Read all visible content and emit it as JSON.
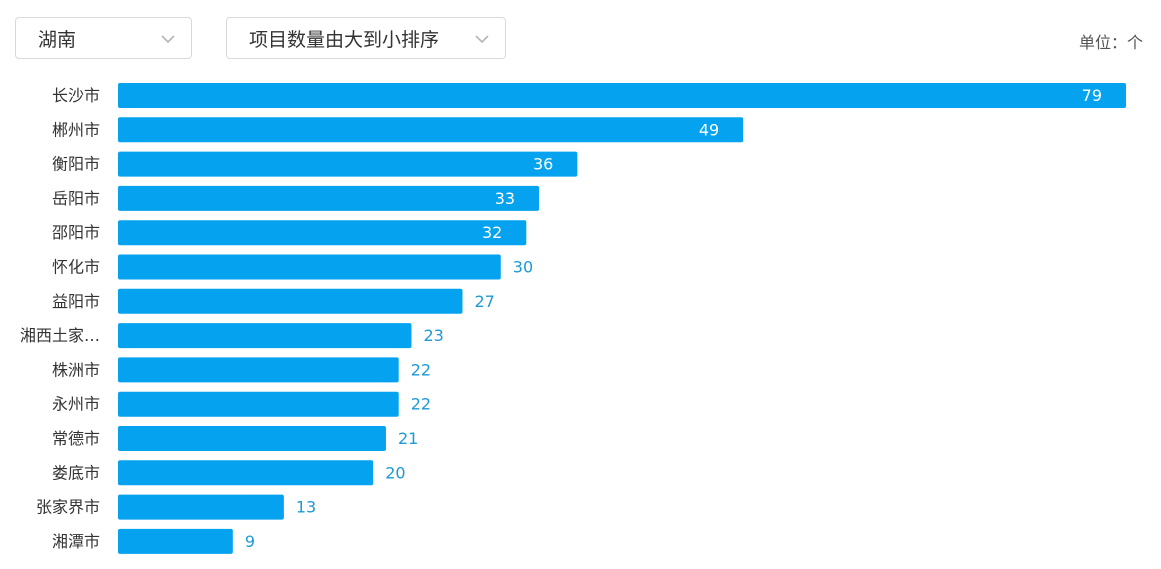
{
  "filters": {
    "region": "湖南",
    "sort": "项目数量由大到小排序"
  },
  "unit_label": "单位：个",
  "colors": {
    "bar": "#04a2ef",
    "value_outside": "#1c9ad6"
  },
  "chart_data": {
    "type": "bar",
    "orientation": "horizontal",
    "categories": [
      "长沙市",
      "郴州市",
      "衡阳市",
      "岳阳市",
      "邵阳市",
      "怀化市",
      "益阳市",
      "湘西土家…",
      "株洲市",
      "永州市",
      "常德市",
      "娄底市",
      "张家界市",
      "湘潭市"
    ],
    "values": [
      79,
      49,
      36,
      33,
      32,
      30,
      27,
      23,
      22,
      22,
      21,
      20,
      13,
      9
    ],
    "xlim": [
      0,
      79
    ],
    "grid": false,
    "legend": "none"
  }
}
